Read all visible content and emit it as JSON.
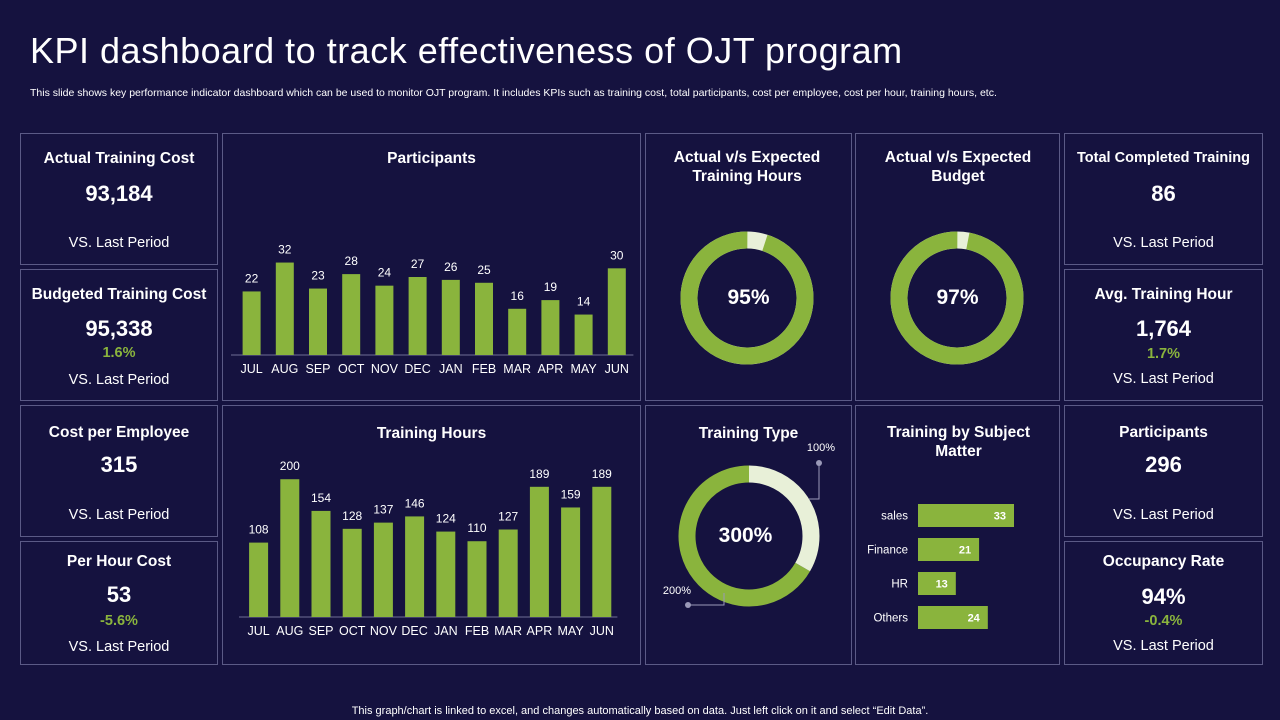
{
  "page": {
    "title": "KPI dashboard to track effectiveness of OJT program",
    "subtitle": "This slide shows key performance indicator dashboard which can be used to monitor OJT program. It includes KPIs such as training cost, total participants, cost per employee, cost per hour, training hours, etc.",
    "footer": "This graph/chart is linked to excel,  and changes automatically based on data. Just left click on it and select “Edit Data”."
  },
  "colors": {
    "background": "#15123f",
    "border": "#5b5a86",
    "accent": "#8ab43d",
    "light": "#e8f0d8",
    "text": "#ffffff"
  },
  "kpis": {
    "actual_training_cost": {
      "label": "Actual Training Cost",
      "value": "93,184",
      "sub": "VS. Last Period"
    },
    "budgeted_training_cost": {
      "label": "Budgeted Training Cost",
      "value": "95,338",
      "change": "1.6%",
      "sub": "VS. Last Period"
    },
    "cost_per_employee": {
      "label": "Cost per Employee",
      "value": "315",
      "sub": "VS. Last Period"
    },
    "per_hour_cost": {
      "label": "Per Hour Cost",
      "value": "53",
      "change": "-5.6%",
      "sub": "VS. Last Period"
    },
    "total_completed_training": {
      "label": "Total Completed Training",
      "value": "86",
      "sub": "VS. Last Period"
    },
    "avg_training_hour": {
      "label": "Avg. Training Hour",
      "value": "1,764",
      "change": "1.7%",
      "sub": "VS. Last Period"
    },
    "participants": {
      "label": "Participants",
      "value": "296",
      "sub": "VS. Last Period"
    },
    "occupancy_rate": {
      "label": "Occupancy Rate",
      "value": "94%",
      "change": "-0.4%",
      "sub": "VS. Last Period"
    }
  },
  "chart_data": [
    {
      "id": "participants",
      "type": "bar",
      "title": "Participants",
      "categories": [
        "JUL",
        "AUG",
        "SEP",
        "OCT",
        "NOV",
        "DEC",
        "JAN",
        "FEB",
        "MAR",
        "APR",
        "MAY",
        "JUN"
      ],
      "values": [
        22,
        32,
        23,
        28,
        24,
        27,
        26,
        25,
        16,
        19,
        14,
        30
      ],
      "ylim": [
        0,
        36
      ]
    },
    {
      "id": "training_hours",
      "type": "bar",
      "title": "Training Hours",
      "categories": [
        "JUL",
        "AUG",
        "SEP",
        "OCT",
        "NOV",
        "DEC",
        "JAN",
        "FEB",
        "MAR",
        "APR",
        "MAY",
        "JUN"
      ],
      "values": [
        108,
        200,
        154,
        128,
        137,
        146,
        124,
        110,
        127,
        189,
        159,
        189
      ],
      "ylim": [
        0,
        225
      ]
    },
    {
      "id": "actual_vs_expected_hours",
      "type": "pie",
      "title": "Actual v/s Expected Training Hours",
      "value": 95,
      "label": "95%"
    },
    {
      "id": "actual_vs_expected_budget",
      "type": "pie",
      "title": "Actual v/s Expected Budget",
      "value": 97,
      "label": "97%"
    },
    {
      "id": "training_type",
      "type": "pie",
      "title": "Training Type",
      "center_label": "300%",
      "segments": [
        {
          "label": "200%",
          "value": 200
        },
        {
          "label": "100%",
          "value": 100
        }
      ]
    },
    {
      "id": "training_by_subject",
      "type": "bar",
      "orientation": "horizontal",
      "title": "Training by Subject Matter",
      "categories": [
        "sales",
        "Finance",
        "HR",
        "Others"
      ],
      "values": [
        33,
        21,
        13,
        24
      ],
      "xlim": [
        0,
        33
      ]
    }
  ]
}
